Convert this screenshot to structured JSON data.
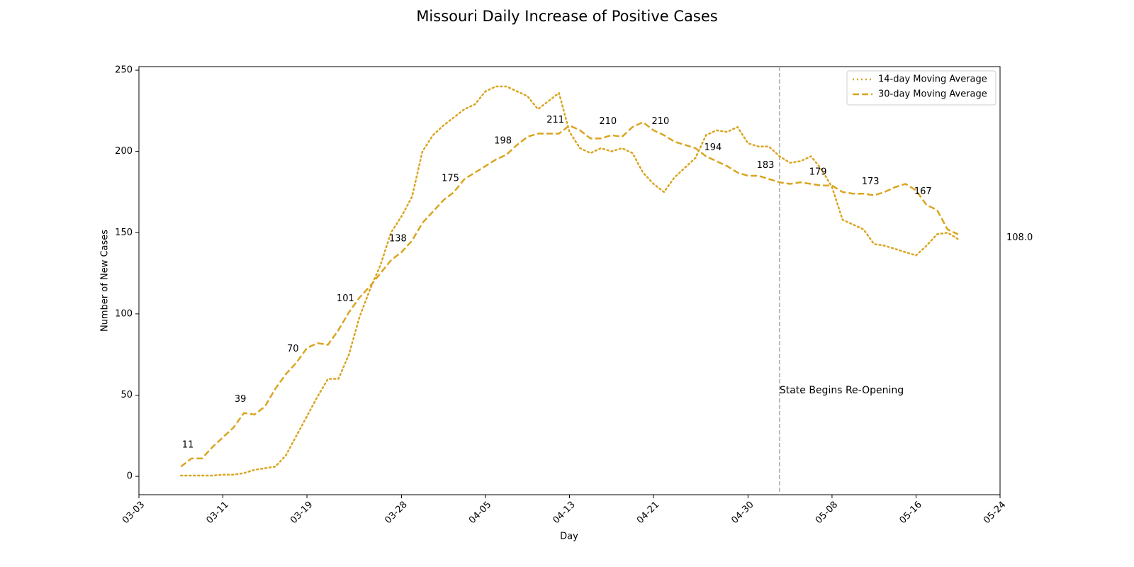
{
  "chart_data": {
    "type": "line",
    "title": "Missouri Daily Increase of Positive Cases",
    "xlabel": "Day",
    "ylabel": "Number of New Cases",
    "x": [
      "03-07",
      "03-08",
      "03-09",
      "03-10",
      "03-11",
      "03-12",
      "03-13",
      "03-14",
      "03-15",
      "03-16",
      "03-17",
      "03-18",
      "03-19",
      "03-20",
      "03-21",
      "03-22",
      "03-23",
      "03-24",
      "03-25",
      "03-26",
      "03-27",
      "03-28",
      "03-29",
      "03-30",
      "03-31",
      "04-01",
      "04-02",
      "04-03",
      "04-04",
      "04-05",
      "04-06",
      "04-07",
      "04-08",
      "04-09",
      "04-10",
      "04-11",
      "04-12",
      "04-13",
      "04-14",
      "04-15",
      "04-16",
      "04-17",
      "04-18",
      "04-19",
      "04-20",
      "04-21",
      "04-22",
      "04-23",
      "04-24",
      "04-25",
      "04-26",
      "04-27",
      "04-28",
      "04-29",
      "04-30",
      "05-01",
      "05-02",
      "05-03",
      "05-04",
      "05-05",
      "05-06",
      "05-07",
      "05-08",
      "05-09",
      "05-10",
      "05-11",
      "05-12",
      "05-13",
      "05-14",
      "05-15",
      "05-16",
      "05-17",
      "05-18",
      "05-19",
      "05-20"
    ],
    "series": [
      {
        "name": "14-day Moving Average",
        "color": "#daa520",
        "dash": "dotted",
        "values": [
          0.5,
          0.5,
          0.5,
          0.5,
          1,
          1,
          2,
          4,
          5,
          6,
          13,
          25,
          37,
          49,
          60,
          60,
          75,
          98,
          115,
          130,
          150,
          160,
          172,
          200,
          210,
          216,
          221,
          226,
          229,
          237,
          240,
          240,
          237,
          234,
          226,
          231,
          236,
          212,
          202,
          199,
          202,
          200,
          202,
          199,
          187,
          180,
          175,
          184,
          190,
          196,
          210,
          213,
          212,
          215,
          205,
          203,
          203,
          197,
          193,
          194,
          197,
          189,
          178,
          158,
          155,
          152,
          143,
          142,
          140,
          138,
          136,
          142,
          149,
          150,
          146
        ]
      },
      {
        "name": "30-day Moving Average",
        "color": "#daa520",
        "dash": "dashed",
        "values": [
          6,
          11,
          11,
          18,
          24,
          30,
          39,
          38,
          43,
          54,
          63,
          70,
          79,
          82,
          81,
          90,
          101,
          110,
          117,
          125,
          133,
          138,
          145,
          156,
          163,
          170,
          175,
          183,
          187,
          191,
          195,
          198,
          204,
          209,
          211,
          211,
          211,
          216,
          213,
          208,
          208,
          210,
          209,
          215,
          218,
          213,
          210,
          206,
          204,
          202,
          197,
          194,
          191,
          187,
          185,
          185,
          183,
          181,
          180,
          181,
          180,
          179,
          179,
          175,
          174,
          174,
          173,
          175,
          178,
          180,
          176,
          167,
          164,
          152,
          149
        ]
      }
    ],
    "annotations": [
      {
        "x": "03-08",
        "value": 11
      },
      {
        "x": "03-13",
        "value": 39
      },
      {
        "x": "03-18",
        "value": 70
      },
      {
        "x": "03-23",
        "value": 101
      },
      {
        "x": "03-28",
        "value": 138
      },
      {
        "x": "04-02",
        "value": 175
      },
      {
        "x": "04-07",
        "value": 198
      },
      {
        "x": "04-12",
        "value": 211
      },
      {
        "x": "04-17",
        "value": 210
      },
      {
        "x": "04-22",
        "value": 210
      },
      {
        "x": "04-27",
        "value": 194
      },
      {
        "x": "05-02",
        "value": 183
      },
      {
        "x": "05-07",
        "value": 179
      },
      {
        "x": "05-12",
        "value": 173
      },
      {
        "x": "05-17",
        "value": 167
      }
    ],
    "end_label": "108.0",
    "vline": {
      "x": "05-03",
      "label": "State Begins Re-Opening",
      "color": "#aaaaaa"
    },
    "xlim": [
      "03-03",
      "05-24"
    ],
    "xticks": [
      "03-03",
      "03-11",
      "03-19",
      "03-28",
      "04-05",
      "04-13",
      "04-21",
      "04-30",
      "05-08",
      "05-16",
      "05-24"
    ],
    "ylim": [
      -11.3,
      252.2
    ],
    "yticks": [
      0,
      50,
      100,
      150,
      200,
      250
    ],
    "grid": false,
    "legend": "upper right"
  }
}
